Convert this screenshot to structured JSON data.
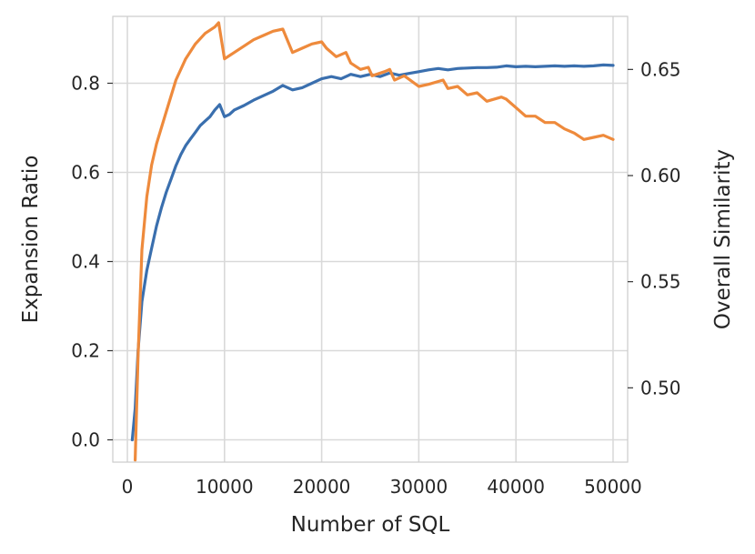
{
  "chart_data": {
    "type": "line",
    "title": "",
    "xlabel": "Number of SQL",
    "ylabel_left": "Expansion Ratio",
    "ylabel_right": "Overall Similarity",
    "xlim": [
      -1500,
      51500
    ],
    "ylim_left": [
      -0.05,
      0.95
    ],
    "ylim_right": [
      0.465,
      0.675
    ],
    "x_ticks": [
      0,
      10000,
      20000,
      30000,
      40000,
      50000
    ],
    "x_tick_labels": [
      "0",
      "10000",
      "20000",
      "30000",
      "40000",
      "50000"
    ],
    "left_ticks": [
      0.0,
      0.2,
      0.4,
      0.6,
      0.8
    ],
    "left_tick_labels": [
      "0.0",
      "0.2",
      "0.4",
      "0.6",
      "0.8"
    ],
    "right_ticks": [
      0.5,
      0.55,
      0.6,
      0.65
    ],
    "right_tick_labels": [
      "0.50",
      "0.55",
      "0.60",
      "0.65"
    ],
    "grid": true,
    "legend": "none",
    "colors": {
      "series_left": "#3a6fae",
      "series_right": "#ee8a3c",
      "grid": "#d9d9d9"
    },
    "series": [
      {
        "axis": "left",
        "x": [
          500,
          800,
          1100,
          1500,
          2000,
          2500,
          3000,
          3500,
          4000,
          4500,
          5000,
          5500,
          6000,
          6500,
          7000,
          7500,
          8000,
          8500,
          9000,
          9500,
          10000,
          10500,
          11000,
          12000,
          13000,
          14000,
          15000,
          16000,
          17000,
          18000,
          19000,
          20000,
          21000,
          22000,
          23000,
          24000,
          25000,
          26000,
          27000,
          28000,
          29000,
          30000,
          31000,
          32000,
          33000,
          34000,
          35000,
          36000,
          37000,
          38000,
          39000,
          40000,
          41000,
          42000,
          43000,
          44000,
          45000,
          46000,
          47000,
          48000,
          49000,
          50000
        ],
        "y": [
          0.0,
          0.07,
          0.2,
          0.31,
          0.38,
          0.43,
          0.48,
          0.52,
          0.555,
          0.585,
          0.615,
          0.64,
          0.66,
          0.675,
          0.69,
          0.705,
          0.715,
          0.725,
          0.74,
          0.752,
          0.725,
          0.73,
          0.74,
          0.75,
          0.762,
          0.772,
          0.782,
          0.795,
          0.785,
          0.79,
          0.8,
          0.81,
          0.815,
          0.81,
          0.82,
          0.815,
          0.82,
          0.815,
          0.823,
          0.818,
          0.822,
          0.826,
          0.83,
          0.833,
          0.83,
          0.833,
          0.834,
          0.835,
          0.835,
          0.836,
          0.839,
          0.837,
          0.838,
          0.837,
          0.838,
          0.839,
          0.838,
          0.839,
          0.838,
          0.839,
          0.841,
          0.84
        ]
      },
      {
        "axis": "right",
        "x": [
          800,
          1100,
          1500,
          2000,
          2500,
          3000,
          4000,
          5000,
          6000,
          7000,
          8000,
          9000,
          9400,
          10000,
          11000,
          12000,
          13000,
          14000,
          15000,
          16000,
          17000,
          18000,
          19000,
          20000,
          20500,
          21500,
          22500,
          23000,
          24000,
          24800,
          25200,
          26500,
          27000,
          27500,
          28500,
          30000,
          31000,
          32500,
          33000,
          34000,
          35000,
          36000,
          37000,
          38500,
          39000,
          40000,
          41000,
          42000,
          43000,
          44000,
          45000,
          46000,
          47000,
          48000,
          49000,
          50000
        ],
        "y": [
          0.466,
          0.515,
          0.565,
          0.59,
          0.605,
          0.615,
          0.63,
          0.645,
          0.655,
          0.662,
          0.667,
          0.67,
          0.672,
          0.655,
          0.658,
          0.661,
          0.664,
          0.666,
          0.668,
          0.669,
          0.658,
          0.66,
          0.662,
          0.663,
          0.66,
          0.656,
          0.658,
          0.653,
          0.65,
          0.651,
          0.647,
          0.649,
          0.65,
          0.645,
          0.647,
          0.642,
          0.643,
          0.645,
          0.641,
          0.642,
          0.638,
          0.639,
          0.635,
          0.637,
          0.636,
          0.632,
          0.628,
          0.628,
          0.625,
          0.625,
          0.622,
          0.62,
          0.617,
          0.618,
          0.619,
          0.617
        ]
      }
    ]
  }
}
